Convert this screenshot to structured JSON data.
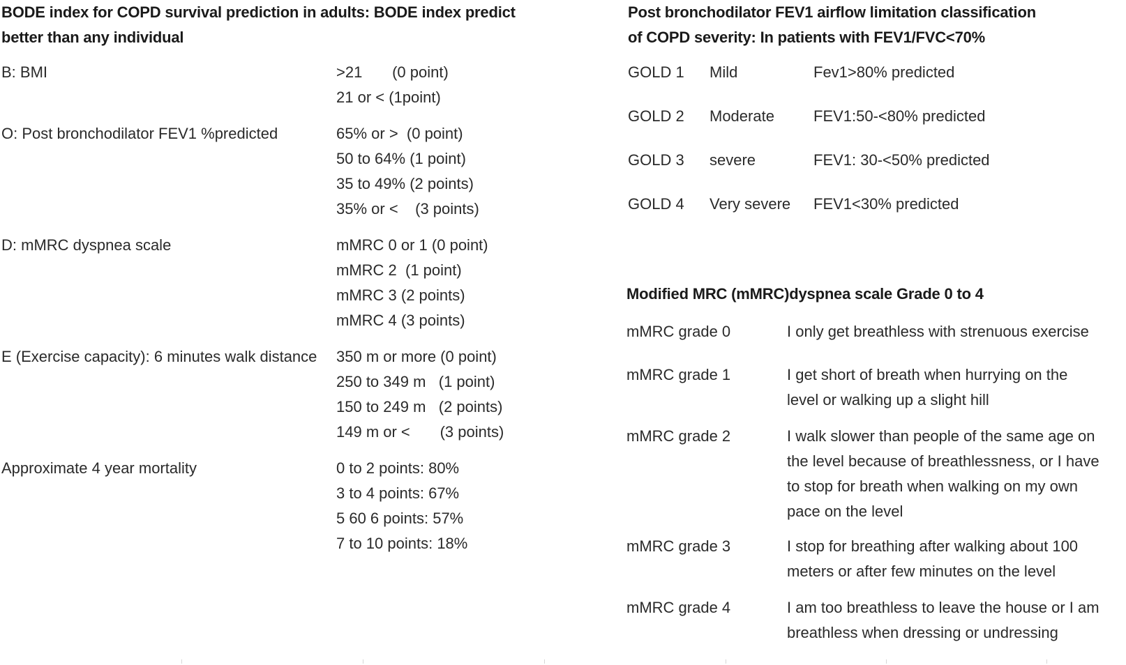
{
  "bode": {
    "heading_line1": "BODE index for COPD survival prediction in adults: BODE index predict",
    "heading_line2": "better than any individual",
    "rows": [
      {
        "label": "B: BMI",
        "values": [
          ">21       (0 point)",
          "21 or < (1point)"
        ]
      },
      {
        "label": "O: Post bronchodilator FEV1 %predicted",
        "values": [
          "65% or >  (0 point)",
          "50 to 64% (1 point)",
          "35 to 49% (2 points)",
          "35% or <    (3 points)"
        ]
      },
      {
        "label": "D: mMRC dyspnea scale",
        "values": [
          "mMRC 0 or 1 (0 point)",
          "mMRC 2  (1 point)",
          "mMRC 3 (2 points)",
          "mMRC 4 (3 points)"
        ]
      },
      {
        "label": "E (Exercise capacity): 6 minutes walk distance",
        "values": [
          "350 m or more (0 point)",
          "250 to 349 m   (1 point)",
          "150 to 249 m   (2 points)",
          "149 m or <       (3 points)"
        ]
      },
      {
        "label": "Approximate 4 year mortality",
        "values": [
          "0 to 2 points: 80%",
          "3 to 4 points: 67%",
          "5 60 6 points: 57%",
          "7 to 10 points: 18%"
        ]
      }
    ]
  },
  "gold": {
    "heading_line1": "Post bronchodilator FEV1 airflow limitation classification",
    "heading_line2": "of COPD severity: In patients with FEV1/FVC<70%",
    "rows": [
      {
        "grade": "GOLD 1",
        "severity": "Mild",
        "criteria": "Fev1>80% predicted"
      },
      {
        "grade": "GOLD 2",
        "severity": "Moderate",
        "criteria": "FEV1:50-<80% predicted"
      },
      {
        "grade": "GOLD 3",
        "severity": "severe",
        "criteria": "FEV1: 30-<50% predicted"
      },
      {
        "grade": "GOLD 4",
        "severity": "Very severe",
        "criteria": "FEV1<30% predicted"
      }
    ]
  },
  "mmrc": {
    "heading": "Modified MRC (mMRC)dyspnea scale Grade 0 to 4",
    "rows": [
      {
        "grade": "mMRC grade 0",
        "lines": [
          "I only get breathless with strenuous exercise"
        ]
      },
      {
        "grade": "mMRC grade 1",
        "lines": [
          "I get short of breath when hurrying on the",
          "level or walking up a slight hill"
        ]
      },
      {
        "grade": "mMRC grade 2",
        "lines": [
          "I walk slower than people of the same age on",
          "the level because of breathlessness, or I have",
          "to stop for breath when walking on my own",
          "pace on the level"
        ]
      },
      {
        "grade": "mMRC grade 3",
        "lines": [
          "I stop for breathing after walking about 100",
          "meters or after few minutes on the level"
        ]
      },
      {
        "grade": "mMRC grade 4",
        "lines": [
          "I am too breathless to leave the house or I am",
          "breathless when dressing or undressing"
        ]
      }
    ]
  }
}
